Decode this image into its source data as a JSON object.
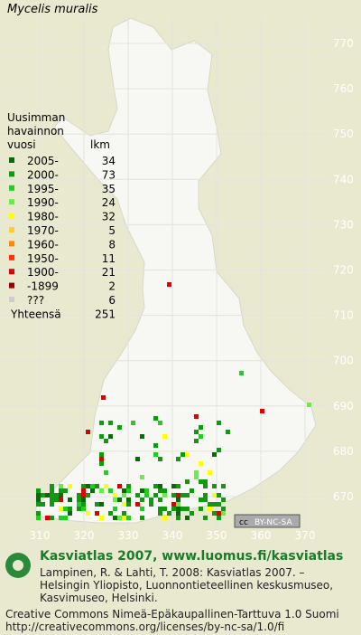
{
  "title": "Mycelis muralis",
  "legend": {
    "heading": [
      "Uusimman",
      "havainnon",
      "vuosi"
    ],
    "count_heading": "lkm",
    "rows": [
      {
        "label": "2005-",
        "count": 34,
        "color": "#0a6a0a"
      },
      {
        "label": "2000-",
        "count": 73,
        "color": "#119911"
      },
      {
        "label": "1995-",
        "count": 35,
        "color": "#22cc22"
      },
      {
        "label": "1990-",
        "count": 24,
        "color": "#66ee44"
      },
      {
        "label": "1980-",
        "count": 32,
        "color": "#ffff00"
      },
      {
        "label": "1970-",
        "count": 5,
        "color": "#ffcc33"
      },
      {
        "label": "1960-",
        "count": 8,
        "color": "#ff8800"
      },
      {
        "label": "1950-",
        "count": 11,
        "color": "#ff3300"
      },
      {
        "label": "1900-",
        "count": 21,
        "color": "#dd0000"
      },
      {
        "label": "-1899",
        "count": 2,
        "color": "#990000"
      },
      {
        "label": "???",
        "count": 6,
        "color": "#cccccc"
      }
    ],
    "total": {
      "label": "Yhteensä",
      "count": 251
    }
  },
  "map": {
    "y_labels": [
      "770",
      "760",
      "750",
      "740",
      "730",
      "720",
      "710",
      "700",
      "690",
      "680",
      "670"
    ],
    "x_labels": [
      "310",
      "320",
      "330",
      "340",
      "350",
      "360",
      "370"
    ],
    "badge": [
      "cc",
      "BY-NC-SA"
    ]
  },
  "footer": {
    "brand": "Kasviatlas 2007, www.luomus.fi/kasviatlas",
    "citation": [
      "Lampinen, R. & Lahti, T. 2008: Kasviatlas 2007. –",
      "Helsingin Yliopisto, Luonnontieteellinen keskusmuseo,",
      "Kasvimuseo, Helsinki."
    ],
    "license": [
      "Creative Commons Nimeä-Epäkaupallinen-Tarttuva 1.0 Suomi",
      "http://creativecommons.org/licenses/by-nc-sa/1.0/fi"
    ]
  }
}
